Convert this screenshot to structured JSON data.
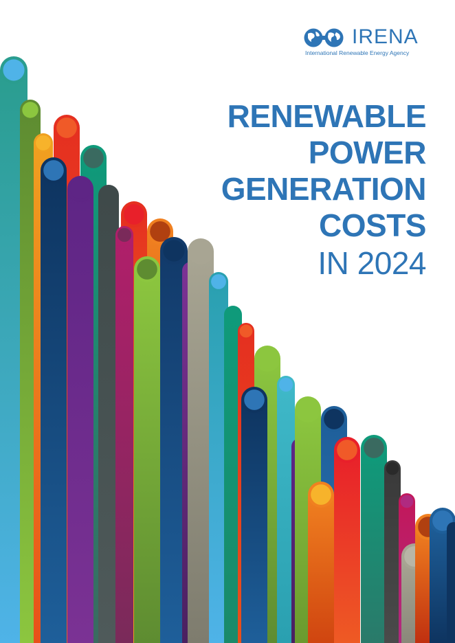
{
  "brand": {
    "name": "IRENA",
    "full_name": "International Renewable Energy Agency"
  },
  "title": {
    "lines": [
      "RENEWABLE",
      "POWER",
      "GENERATION",
      "COSTS"
    ],
    "subtitle": "IN 2024"
  },
  "colors": {
    "brand_blue": "#2e75b6",
    "background": "#ffffff"
  },
  "decor": {
    "style": "descending colored bars with round caps",
    "palette": [
      "#3aa0c8",
      "#6a9a2f",
      "#f0a020",
      "#e03020",
      "#14477a",
      "#0f9a7a",
      "#6a2a8a",
      "#4a5a5a",
      "#c2185b",
      "#e8501a",
      "#8cc63f",
      "#1e5f9a",
      "#a09f8f",
      "#3fb8c8",
      "#ee3a24",
      "#0f9a80",
      "#3a3a3a",
      "#b02a80"
    ]
  }
}
